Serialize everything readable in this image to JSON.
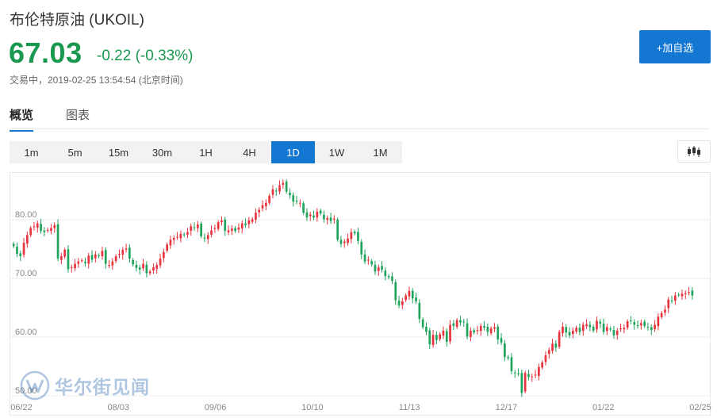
{
  "header": {
    "title": "布伦特原油 (UKOIL)",
    "price": "67.03",
    "change": "-0.22 (-0.33%)",
    "status": "交易中，2019-02-25 13:54:54 (北京时间)",
    "add_watchlist_label": "+加自选"
  },
  "tabs": [
    {
      "label": "概览",
      "active": true
    },
    {
      "label": "图表",
      "active": false
    }
  ],
  "periods": [
    {
      "label": "1m",
      "active": false
    },
    {
      "label": "5m",
      "active": false
    },
    {
      "label": "15m",
      "active": false
    },
    {
      "label": "30m",
      "active": false
    },
    {
      "label": "1H",
      "active": false
    },
    {
      "label": "4H",
      "active": false
    },
    {
      "label": "1D",
      "active": true
    },
    {
      "label": "1W",
      "active": false
    },
    {
      "label": "1M",
      "active": false
    }
  ],
  "chart_type_icon": "candlestick-icon",
  "watermark": {
    "text": "华尔街见闻",
    "icon": "wallstreetcn-logo-icon"
  },
  "colors": {
    "up": "#e8323c",
    "down": "#1da35a",
    "accent": "#1478d2",
    "price": "#1a9850"
  },
  "chart_data": {
    "type": "candlestick",
    "ylim": [
      50,
      88
    ],
    "y_ticks": [
      "80.00",
      "70.00",
      "60.00",
      "50.00"
    ],
    "x_labels": [
      "06/22",
      "08/03",
      "09/06",
      "10/10",
      "11/13",
      "12/17",
      "01/22",
      "02/25"
    ],
    "grid": "horizontal",
    "closes": [
      75.5,
      74.2,
      73.8,
      76.1,
      77.4,
      78.6,
      78.9,
      79.4,
      78.1,
      77.9,
      78.3,
      78.6,
      79.1,
      73.4,
      73.8,
      74.9,
      71.6,
      71.9,
      72.5,
      72.9,
      73.1,
      72.6,
      73.9,
      73.2,
      74.1,
      73.8,
      74.7,
      72.5,
      72.3,
      72.9,
      73.8,
      74.2,
      74.9,
      75.1,
      73.4,
      72.4,
      71.8,
      71.5,
      72.5,
      70.9,
      71.2,
      71.9,
      72.3,
      73.4,
      74.5,
      75.8,
      76.6,
      76.9,
      77.1,
      77.6,
      77.4,
      77.9,
      78.9,
      78.6,
      79.2,
      77.2,
      76.8,
      77.4,
      78.2,
      78.6,
      79.6,
      79.9,
      78.1,
      78.2,
      78.5,
      78.1,
      78.7,
      79.4,
      79.1,
      79.9,
      80.1,
      81.2,
      81.7,
      82.5,
      82.9,
      84.1,
      85.2,
      84.9,
      85.9,
      86.3,
      84.8,
      84.2,
      83.1,
      83.1,
      82.9,
      81.2,
      80.4,
      80.9,
      80.4,
      81.4,
      81.1,
      80.1,
      80.3,
      79.8,
      80.2,
      76.6,
      75.9,
      76.3,
      76.8,
      77.9,
      77.7,
      76.4,
      74.1,
      72.9,
      73.2,
      72.4,
      71.2,
      71.9,
      71.5,
      70.4,
      70.2,
      69.6,
      66.3,
      65.4,
      66.1,
      67.1,
      67.9,
      66.6,
      66.1,
      63.1,
      61.7,
      60.9,
      58.8,
      60.4,
      59.5,
      60.5,
      61.1,
      59.2,
      62.1,
      61.9,
      62.9,
      62.5,
      62.6,
      60.1,
      61.1,
      60.8,
      61.2,
      61.9,
      61.6,
      60.9,
      61.5,
      61.7,
      59.6,
      59.1,
      56.6,
      56.4,
      54.2,
      53.9,
      53.8,
      50.5,
      53.9,
      53.2,
      53.3,
      53.6,
      54.9,
      55.7,
      56.9,
      57.8,
      58.9,
      58.2,
      60.9,
      61.8,
      60.8,
      60.3,
      61.1,
      61.6,
      60.9,
      62.1,
      62.2,
      61.7,
      61.1,
      62.8,
      62.3,
      60.9,
      61.7,
      61.3,
      60.3,
      61.1,
      61.5,
      61.6,
      62.7,
      62.8,
      62.1,
      61.9,
      62.4,
      61.9,
      61.7,
      61.2,
      62.1,
      63.5,
      64.1,
      64.7,
      66.4,
      66.2,
      67.1,
      67.2,
      67.4,
      67.5,
      67.7,
      67.1
    ]
  }
}
